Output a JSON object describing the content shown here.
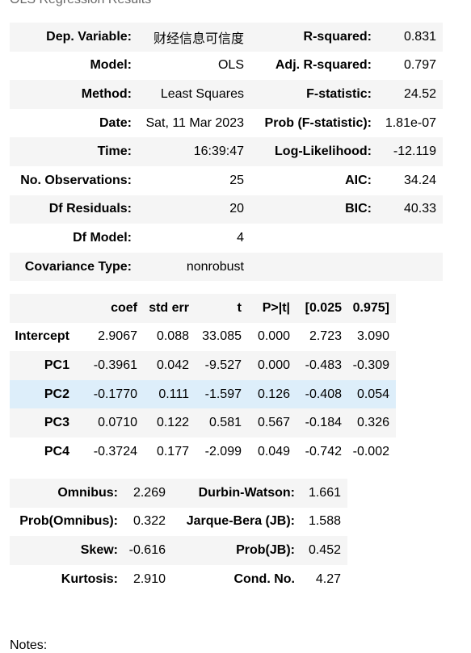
{
  "caption": "OLS Regression Results",
  "summary": {
    "rows": [
      {
        "l1": "Dep. Variable:",
        "v1": "财经信息可信度",
        "l2": "R-squared:",
        "v2": "0.831"
      },
      {
        "l1": "Model:",
        "v1": "OLS",
        "l2": "Adj. R-squared:",
        "v2": "0.797"
      },
      {
        "l1": "Method:",
        "v1": "Least Squares",
        "l2": "F-statistic:",
        "v2": "24.52"
      },
      {
        "l1": "Date:",
        "v1": "Sat, 11 Mar 2023",
        "l2": "Prob (F-statistic):",
        "v2": "1.81e-07"
      },
      {
        "l1": "Time:",
        "v1": "16:39:47",
        "l2": "Log-Likelihood:",
        "v2": "-12.119"
      },
      {
        "l1": "No. Observations:",
        "v1": "25",
        "l2": "AIC:",
        "v2": "34.24"
      },
      {
        "l1": "Df Residuals:",
        "v1": "20",
        "l2": "BIC:",
        "v2": "40.33"
      },
      {
        "l1": "Df Model:",
        "v1": "4",
        "l2": "",
        "v2": ""
      },
      {
        "l1": "Covariance Type:",
        "v1": "nonrobust",
        "l2": "",
        "v2": ""
      }
    ]
  },
  "coefficients": {
    "headers": [
      "",
      "coef",
      "std err",
      "t",
      "P>|t|",
      "[0.025",
      "0.975]"
    ],
    "rows": [
      {
        "name": "Intercept",
        "coef": "2.9067",
        "std_err": "0.088",
        "t": "33.085",
        "p": "0.000",
        "lo": "2.723",
        "hi": "3.090"
      },
      {
        "name": "PC1",
        "coef": "-0.3961",
        "std_err": "0.042",
        "t": "-9.527",
        "p": "0.000",
        "lo": "-0.483",
        "hi": "-0.309"
      },
      {
        "name": "PC2",
        "coef": "-0.1770",
        "std_err": "0.111",
        "t": "-1.597",
        "p": "0.126",
        "lo": "-0.408",
        "hi": "0.054"
      },
      {
        "name": "PC3",
        "coef": "0.0710",
        "std_err": "0.122",
        "t": "0.581",
        "p": "0.567",
        "lo": "-0.184",
        "hi": "0.326"
      },
      {
        "name": "PC4",
        "coef": "-0.3724",
        "std_err": "0.177",
        "t": "-2.099",
        "p": "0.049",
        "lo": "-0.742",
        "hi": "-0.002"
      }
    ]
  },
  "diagnostics": {
    "rows": [
      {
        "l1": "Omnibus:",
        "v1": "2.269",
        "l2": "Durbin-Watson:",
        "v2": "1.661"
      },
      {
        "l1": "Prob(Omnibus):",
        "v1": "0.322",
        "l2": "Jarque-Bera (JB):",
        "v2": "1.588"
      },
      {
        "l1": "Skew:",
        "v1": "-0.616",
        "l2": "Prob(JB):",
        "v2": "0.452"
      },
      {
        "l1": "Kurtosis:",
        "v1": "2.910",
        "l2": "Cond. No.",
        "v2": "4.27"
      }
    ]
  },
  "notes_label": "Notes:",
  "colors": {
    "stripe": "#f5f5f5",
    "hover_row": "#ddeefa"
  }
}
